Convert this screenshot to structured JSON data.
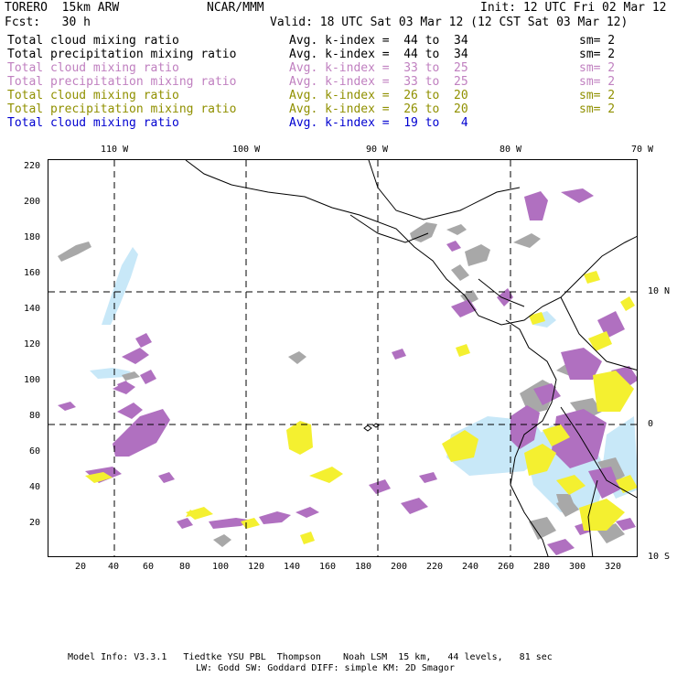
{
  "header": {
    "model": "TORERO  15km ARW",
    "center": "NCAR/MMM",
    "init": "Init: 12 UTC Fri 02 Mar 12",
    "fcst": "Fcst:   30 h",
    "valid": "Valid: 18 UTC Sat 03 Mar 12 (12 CST Sat 03 Mar 12)"
  },
  "legend": [
    {
      "label": "Total cloud mixing ratio",
      "kindex": "Avg. k-index =  44 to  34",
      "sm": "sm= 2",
      "color": "#000000"
    },
    {
      "label": "Total precipitation mixing ratio",
      "kindex": "Avg. k-index =  44 to  34",
      "sm": "sm= 2",
      "color": "#000000"
    },
    {
      "label": "Total cloud mixing ratio",
      "kindex": "Avg. k-index =  33 to  25",
      "sm": "sm= 2",
      "color": "#c080c0"
    },
    {
      "label": "Total precipitation mixing ratio",
      "kindex": "Avg. k-index =  33 to  25",
      "sm": "sm= 2",
      "color": "#c080c0"
    },
    {
      "label": "Total cloud mixing ratio",
      "kindex": "Avg. k-index =  26 to  20",
      "sm": "sm= 2",
      "color": "#909000"
    },
    {
      "label": "Total precipitation mixing ratio",
      "kindex": "Avg. k-index =  26 to  20",
      "sm": "sm= 2",
      "color": "#909000"
    },
    {
      "label": "Total cloud mixing ratio",
      "kindex": "Avg. k-index =  19 to   4",
      "sm": "",
      "color": "#0000d0"
    }
  ],
  "axes": {
    "top_labels": [
      "110 W",
      "100 W",
      "90 W",
      "80 W",
      "70 W"
    ],
    "right_labels": [
      "10 N",
      "0",
      "10 S"
    ],
    "left_ticks": [
      "220",
      "200",
      "180",
      "160",
      "140",
      "120",
      "100",
      "80",
      "60",
      "40",
      "20"
    ],
    "bottom_ticks": [
      "20",
      "40",
      "60",
      "80",
      "100",
      "120",
      "140",
      "160",
      "180",
      "200",
      "220",
      "240",
      "260",
      "280",
      "300",
      "320"
    ]
  },
  "footer": {
    "line1": "Model Info: V3.3.1   Tiedtke YSU PBL  Thompson    Noah LSM  15 km,   44 levels,   81 sec",
    "line2": "LW: Godd SW: Goddard DIFF: simple KM: 2D Smagor"
  },
  "colors": {
    "gray": "#a8a8a8",
    "purple": "#b070c0",
    "yellow": "#f4f030",
    "lightblue": "#c8e8f8"
  }
}
